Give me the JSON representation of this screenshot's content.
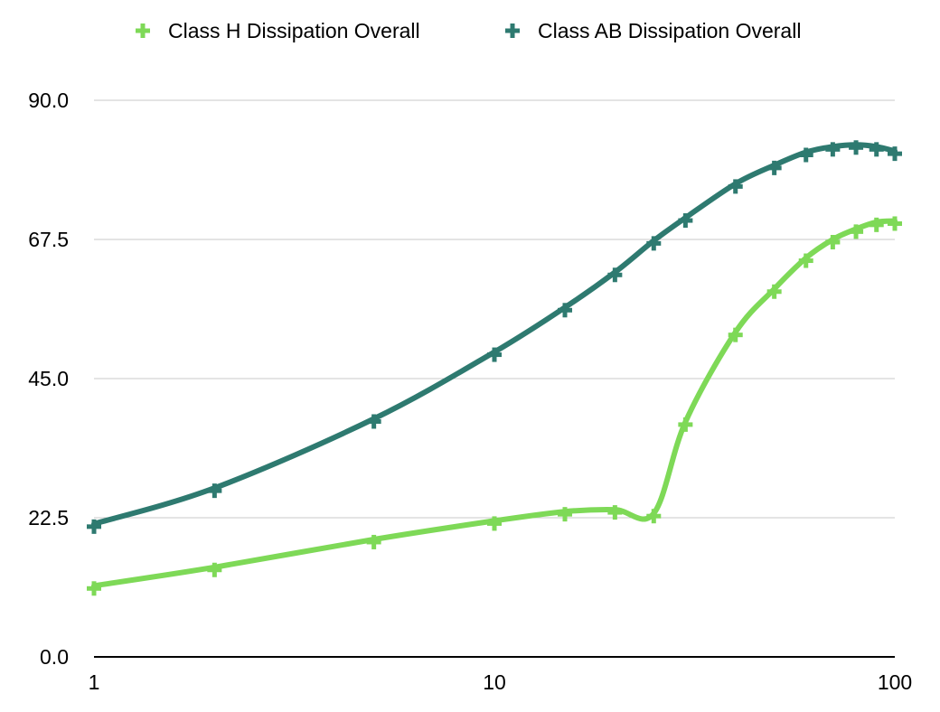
{
  "chart_data": {
    "type": "line",
    "title": "",
    "xlabel": "",
    "ylabel": "",
    "x_scale": "log",
    "xlim": [
      1,
      100
    ],
    "ylim": [
      0,
      90
    ],
    "x_ticks": [
      "1",
      "10",
      "100"
    ],
    "y_ticks": [
      "0.0",
      "22.5",
      "45.0",
      "67.5",
      "90.0"
    ],
    "grid": "horizontal",
    "legend": "top",
    "series": [
      {
        "name": "Class H Dissipation Overall",
        "color": "#7ed957",
        "marker": "plus",
        "x": [
          1,
          2,
          5,
          10,
          15,
          20,
          25,
          30,
          40,
          50,
          60,
          70,
          80,
          90,
          100
        ],
        "y": [
          11.5,
          14.5,
          19.0,
          22.0,
          23.5,
          23.8,
          23.2,
          38.0,
          52.5,
          59.5,
          64.5,
          67.5,
          69.2,
          70.3,
          70.5
        ]
      },
      {
        "name": "Class AB Dissipation Overall",
        "color": "#2e7a70",
        "marker": "plus",
        "x": [
          1,
          2,
          5,
          10,
          15,
          20,
          25,
          30,
          40,
          50,
          60,
          70,
          80,
          90,
          100
        ],
        "y": [
          21.5,
          27.3,
          38.5,
          49.3,
          56.5,
          62.2,
          67.3,
          71.0,
          76.5,
          79.5,
          81.6,
          82.5,
          82.8,
          82.5,
          81.8
        ]
      }
    ]
  }
}
